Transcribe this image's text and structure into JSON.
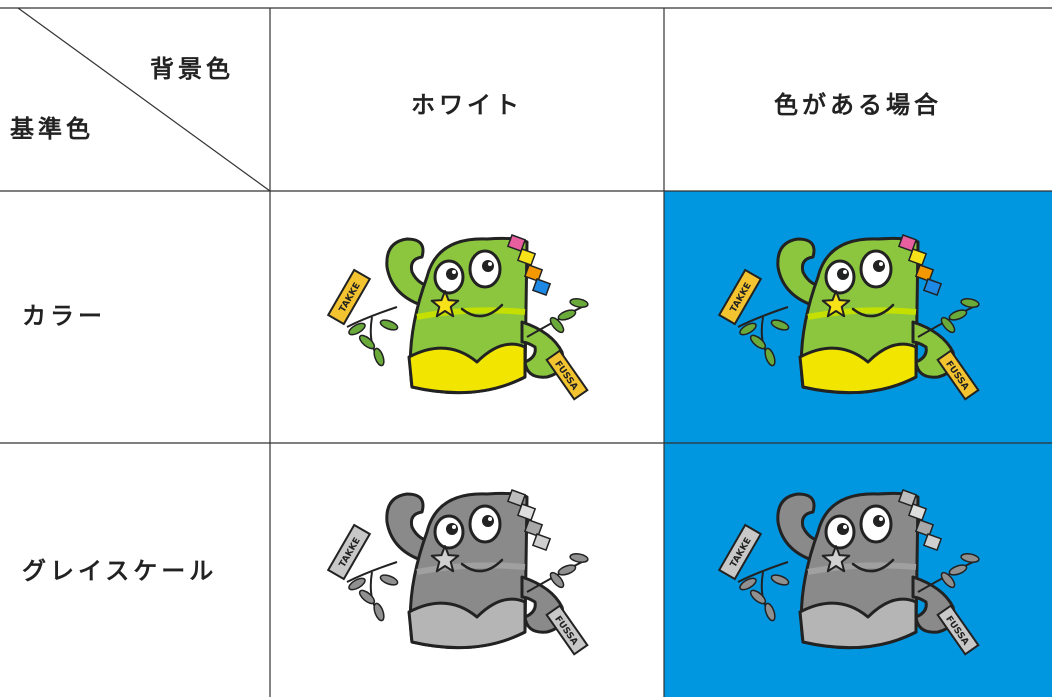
{
  "table": {
    "corner": {
      "top": "背景色",
      "bottom": "基準色"
    },
    "columns": [
      "ホワイト",
      "色がある場合"
    ],
    "rows": [
      "カラー",
      "グレイスケール"
    ]
  },
  "mascot": {
    "tag_left": "TAKKE",
    "tag_right": "FUSSA"
  }
}
